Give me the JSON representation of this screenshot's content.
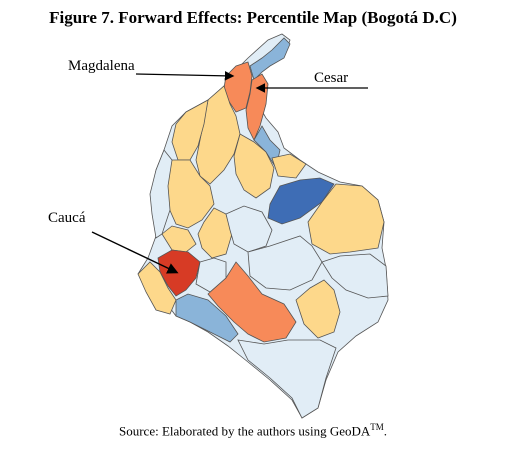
{
  "title": "Figure 7. Forward Effects: Percentile Map (Bogotá D.C)",
  "source_text": "Source: Elaborated by the authors using GeoDA",
  "source_sup": "TM",
  "source_end": ".",
  "labels": {
    "magdalena": "Magdalena",
    "cesar": "Cesar",
    "cauca": "Caucá"
  },
  "colors": {
    "very_low": "#3e6db5",
    "low": "#8ab4d9",
    "mid_low": "#e1edf6",
    "mid_high": "#fdd88b",
    "high": "#f78a59",
    "very_high": "#d73b25",
    "border": "#555555"
  }
}
